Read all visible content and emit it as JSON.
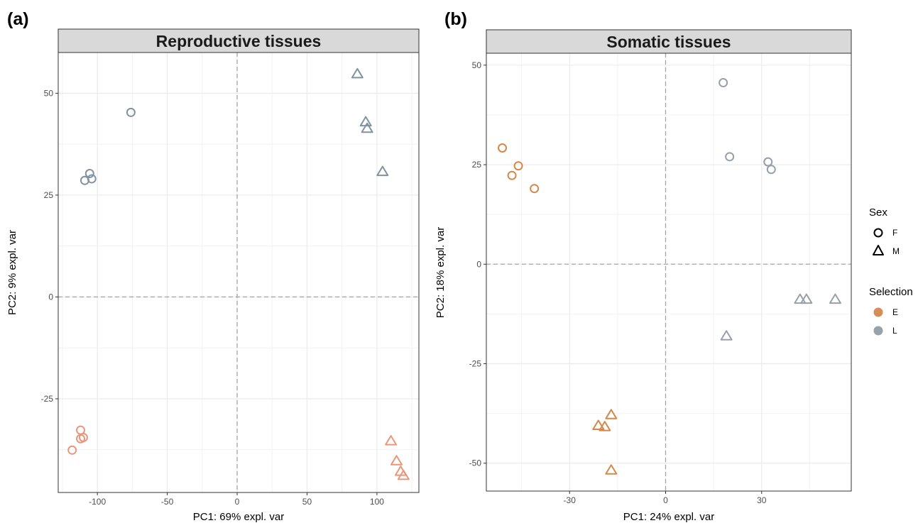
{
  "panels": [
    {
      "tag": "(a)",
      "title": "Reproductive tissues"
    },
    {
      "tag": "(b)",
      "title": "Somatic tissues"
    }
  ],
  "legend": {
    "sex_title": "Sex",
    "sex_items": [
      {
        "label": "F",
        "shape": "circle-icon"
      },
      {
        "label": "M",
        "shape": "triangle-icon"
      }
    ],
    "selection_title": "Selection",
    "selection_items": [
      {
        "label": "E",
        "color_repro": "#e8977a",
        "color_somatic": "#d4884a",
        "swatch": "#d68d57"
      },
      {
        "label": "L",
        "color_repro": "#7f93a0",
        "color_somatic": "#97a0a8",
        "swatch": "#9aa2a9"
      }
    ]
  },
  "chart_data": [
    {
      "type": "scatter",
      "title": "Reproductive tissues",
      "xlabel": "PC1: 69% expl. var",
      "ylabel": "PC2: 9% expl. var",
      "xlim": [
        -128,
        130
      ],
      "ylim": [
        -48,
        60
      ],
      "xticks": [
        -100,
        -50,
        0,
        50,
        100
      ],
      "yticks": [
        -25,
        0,
        25,
        50
      ],
      "grid": true,
      "reference_lines": {
        "x": 0,
        "y": 0
      },
      "series": [
        {
          "name": "F",
          "group": "L",
          "shape": "circle",
          "points": [
            [
              -76,
              45.3
            ],
            [
              -105.5,
              30.3
            ],
            [
              -104,
              29.0
            ],
            [
              -109,
              28.6
            ]
          ]
        },
        {
          "name": "M",
          "group": "L",
          "shape": "triangle",
          "points": [
            [
              86,
              54.8
            ],
            [
              92,
              43
            ],
            [
              93,
              41.4
            ],
            [
              104,
              30.8
            ]
          ]
        },
        {
          "name": "F",
          "group": "E",
          "shape": "circle",
          "points": [
            [
              -112,
              -32.7
            ],
            [
              -112,
              -34.8
            ],
            [
              -110,
              -34.5
            ],
            [
              -118,
              -37.6
            ]
          ]
        },
        {
          "name": "M",
          "group": "E",
          "shape": "triangle",
          "points": [
            [
              110,
              -35.3
            ],
            [
              114,
              -40.2
            ],
            [
              117,
              -42.8
            ],
            [
              119,
              -43.8
            ]
          ]
        }
      ]
    },
    {
      "type": "scatter",
      "title": "Somatic tissues",
      "xlabel": "PC1: 24% expl. var",
      "ylabel": "PC2: 18% expl. var",
      "xlim": [
        -56,
        58
      ],
      "ylim": [
        -57,
        53
      ],
      "xticks": [
        -30,
        0,
        30
      ],
      "yticks": [
        -50,
        -25,
        0,
        25,
        50
      ],
      "grid": true,
      "reference_lines": {
        "x": 0,
        "y": 0
      },
      "series": [
        {
          "name": "F",
          "group": "E",
          "shape": "circle",
          "points": [
            [
              -51,
              29.2
            ],
            [
              -46,
              24.7
            ],
            [
              -48,
              22.3
            ],
            [
              -41,
              19.0
            ]
          ]
        },
        {
          "name": "F",
          "group": "L",
          "shape": "circle",
          "points": [
            [
              18,
              45.6
            ],
            [
              20,
              27.0
            ],
            [
              32,
              25.7
            ],
            [
              33,
              23.8
            ]
          ]
        },
        {
          "name": "M",
          "group": "L",
          "shape": "triangle",
          "points": [
            [
              42,
              -8.8
            ],
            [
              44,
              -8.8
            ],
            [
              53,
              -8.8
            ],
            [
              19,
              -18.0
            ]
          ]
        },
        {
          "name": "M",
          "group": "E",
          "shape": "triangle",
          "points": [
            [
              -17,
              -37.8
            ],
            [
              -21,
              -40.5
            ],
            [
              -19,
              -40.8
            ],
            [
              -17,
              -51.7
            ]
          ]
        }
      ]
    }
  ]
}
